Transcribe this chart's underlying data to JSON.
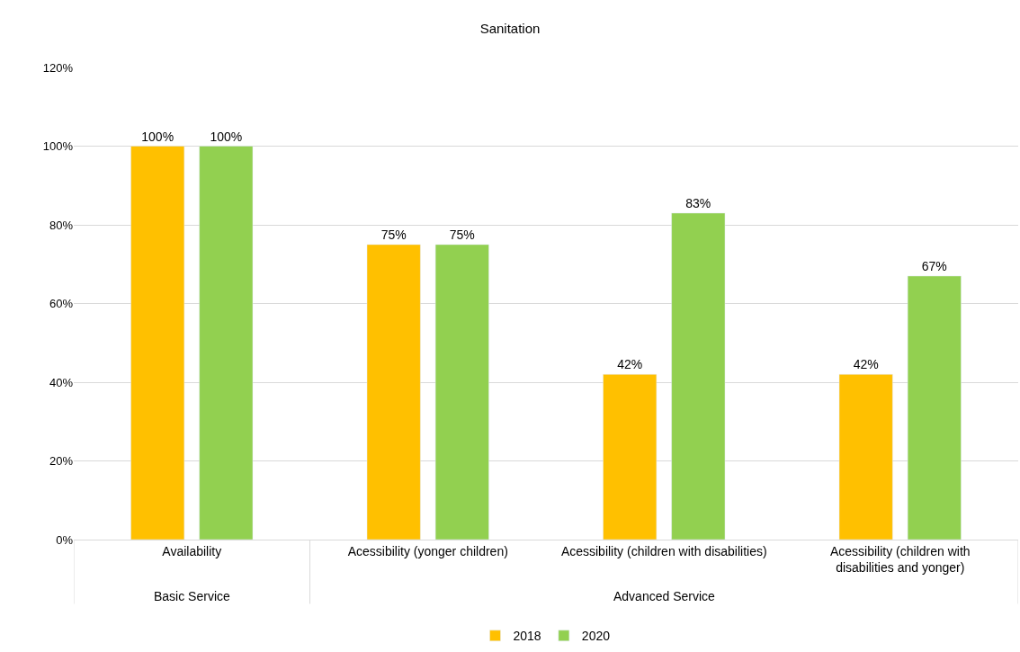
{
  "chart_data": {
    "type": "bar",
    "title": "Sanitation",
    "categories": [
      "Availability",
      "Acessibility (yonger children)",
      "Acessibility (children with disabilities)",
      "Acessibility (children with disabilities and yonger)"
    ],
    "series": [
      {
        "name": "2018",
        "color": "#ffc000",
        "values": [
          100,
          75,
          42,
          42
        ],
        "value_labels": [
          "100%",
          "75%",
          "42%",
          "42%"
        ]
      },
      {
        "name": "2020",
        "color": "#92d050",
        "values": [
          100,
          75,
          83,
          67
        ],
        "value_labels": [
          "100%",
          "75%",
          "83%",
          "67%"
        ]
      }
    ],
    "annotations": [
      "Basic Service",
      "Advanced Service"
    ],
    "ylim": [
      0,
      120
    ],
    "yticks": [
      {
        "value": 0,
        "label": "0%"
      },
      {
        "value": 20,
        "label": "20%"
      },
      {
        "value": 40,
        "label": "40%"
      },
      {
        "value": 60,
        "label": "60%"
      },
      {
        "value": 80,
        "label": "80%"
      },
      {
        "value": 100,
        "label": "100%"
      },
      {
        "value": 120,
        "label": "120%"
      }
    ],
    "grid": "y",
    "legend": "bottom"
  }
}
